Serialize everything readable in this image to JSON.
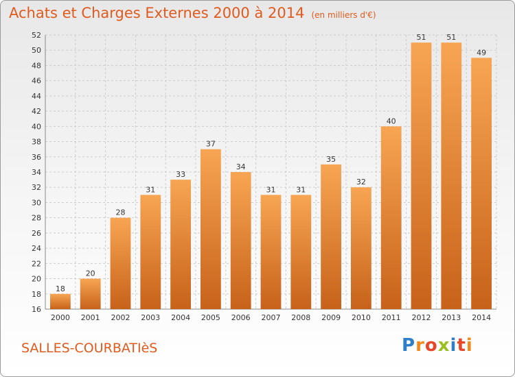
{
  "header": {
    "title": "Achats et Charges Externes 2000 à 2014",
    "subtitle": "(en milliers d'€)"
  },
  "footer": {
    "commune": "SALLES-COURBATIèS",
    "logo": "Proxiti"
  },
  "colors": {
    "bar_light": "#f7a553",
    "bar_dark": "#c7621a",
    "title": "#e05a1e",
    "grid": "#cccccc"
  },
  "chart_data": {
    "type": "bar",
    "title": "Achats et Charges Externes 2000 à 2014",
    "subtitle": "(en milliers d'€)",
    "xlabel": "",
    "ylabel": "",
    "categories": [
      "2000",
      "2001",
      "2002",
      "2003",
      "2004",
      "2005",
      "2006",
      "2007",
      "2008",
      "2009",
      "2010",
      "2011",
      "2012",
      "2013",
      "2014"
    ],
    "values": [
      18,
      20,
      28,
      31,
      33,
      37,
      34,
      31,
      31,
      35,
      32,
      40,
      51,
      51,
      49
    ],
    "ylim": [
      16,
      52
    ],
    "yticks": [
      16,
      18,
      20,
      22,
      24,
      26,
      28,
      30,
      32,
      34,
      36,
      38,
      40,
      42,
      44,
      46,
      48,
      50,
      52
    ],
    "grid": true,
    "data_labels": true
  }
}
